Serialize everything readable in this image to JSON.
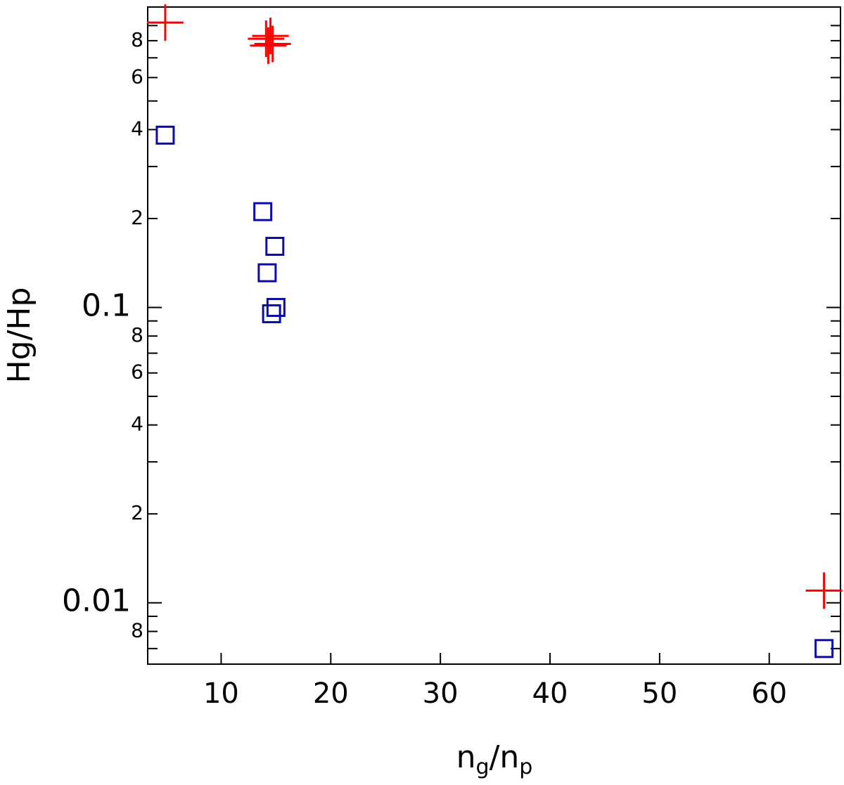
{
  "chart_data": {
    "type": "scatter",
    "x_label": [
      "n",
      "g",
      "/n",
      "p"
    ],
    "y_label": "Hg/Hp",
    "xlim": [
      3.3,
      66.5
    ],
    "xticks": [
      10,
      20,
      30,
      40,
      50,
      60
    ],
    "ylim": [
      0.0062,
      1.04
    ],
    "log_y": true,
    "yticks": [
      {
        "value": 0.8,
        "label": "8"
      },
      {
        "value": 0.6,
        "label": "6"
      },
      {
        "value": 0.4,
        "label": "4"
      },
      {
        "value": 0.2,
        "label": "2"
      },
      0.1,
      {
        "value": 0.08,
        "label": "8"
      },
      {
        "value": 0.06,
        "label": "6"
      },
      {
        "value": 0.04,
        "label": "4"
      },
      {
        "value": 0.02,
        "label": "2"
      },
      0.01,
      {
        "value": 0.008,
        "label": "8"
      }
    ],
    "yminorticks": [
      0.9,
      0.7,
      0.5,
      0.3,
      0.09,
      0.07,
      0.05,
      0.03,
      0.009,
      0.007
    ],
    "series": [
      {
        "color": "#ff0000",
        "marker": "plus",
        "x": [
          4.9,
          14.1,
          14.5,
          14.7,
          14.3,
          65
        ],
        "values": [
          0.921,
          0.812,
          0.83,
          0.78,
          0.77,
          0.011
        ]
      },
      {
        "color": "#0a0aa8",
        "marker": "square",
        "x": [
          4.9,
          13.8,
          14.9,
          14.2,
          15.0,
          14.6,
          65
        ],
        "values": [
          0.383,
          0.211,
          0.161,
          0.131,
          0.1,
          0.0952,
          0.007
        ]
      }
    ]
  }
}
